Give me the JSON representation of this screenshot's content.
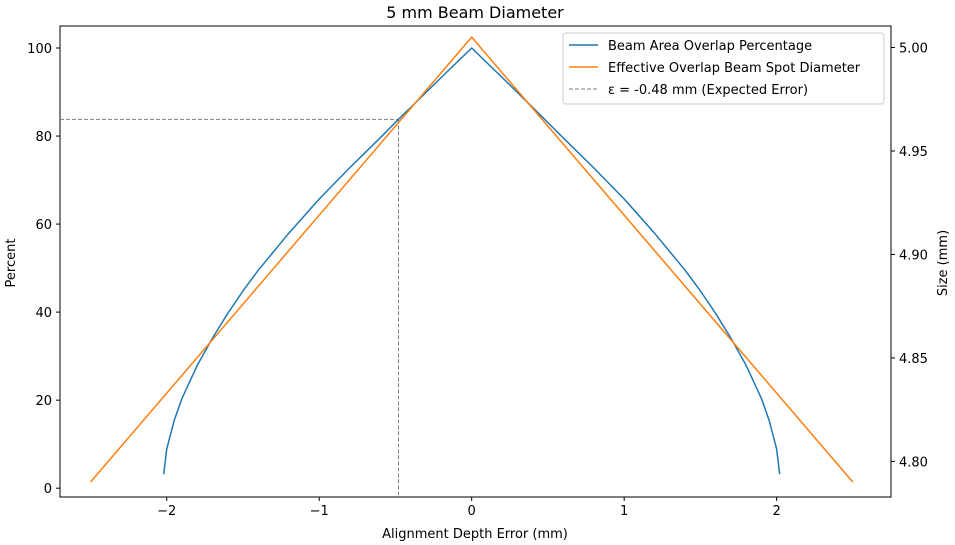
{
  "chart_data": {
    "type": "line",
    "title": "5 mm Beam Diameter",
    "xlabel": "Alignment Depth Error (mm)",
    "ylabel": "Percent",
    "y2label": "Size (mm)",
    "xlim": [
      -2.7,
      2.75
    ],
    "ylim": [
      -2,
      105
    ],
    "y2lim": [
      4.7828,
      5.0104
    ],
    "xticks": [
      -2,
      -1,
      0,
      1,
      2
    ],
    "xtick_labels": [
      "−2",
      "−1",
      "0",
      "1",
      "2"
    ],
    "yticks": [
      0,
      20,
      40,
      60,
      80,
      100
    ],
    "ytick_labels": [
      "0",
      "20",
      "40",
      "60",
      "80",
      "100"
    ],
    "y2ticks": [
      4.8,
      4.85,
      4.9,
      4.95,
      5.0
    ],
    "y2tick_labels": [
      "4.80",
      "4.85",
      "4.90",
      "4.95",
      "5.00"
    ],
    "grid": false,
    "legend_position": "top-right",
    "series": [
      {
        "name": "Beam Area Overlap Percentage",
        "axis": "left",
        "color": "#1f77b4",
        "x": [
          -2.02,
          -2.0,
          -1.95,
          -1.9,
          -1.8,
          -1.7,
          -1.6,
          -1.5,
          -1.4,
          -1.2,
          -1.0,
          -0.8,
          -0.6,
          -0.48,
          -0.4,
          -0.2,
          0,
          0.2,
          0.4,
          0.6,
          0.8,
          1.0,
          1.2,
          1.4,
          1.5,
          1.6,
          1.7,
          1.8,
          1.9,
          1.95,
          2.0,
          2.02
        ],
        "y": [
          3.2,
          8.9,
          15.5,
          20.4,
          27.9,
          34.1,
          39.7,
          44.8,
          49.5,
          57.9,
          65.7,
          72.8,
          79.6,
          83.8,
          86.5,
          93.3,
          100,
          93.3,
          86.5,
          79.6,
          72.8,
          65.7,
          57.9,
          49.5,
          44.8,
          39.7,
          34.1,
          27.9,
          20.4,
          15.5,
          8.9,
          3.2
        ]
      },
      {
        "name": "Effective Overlap Beam Spot Diameter",
        "axis": "right",
        "color": "#ff7f0e",
        "x": [
          -2.5,
          0,
          2.5
        ],
        "y": [
          4.79,
          5.005,
          4.79
        ]
      }
    ],
    "reference_lines": {
      "name": "ε = -0.48 mm (Expected Error)",
      "color": "#7f7f7f",
      "x": -0.48,
      "y": 83.8
    }
  }
}
